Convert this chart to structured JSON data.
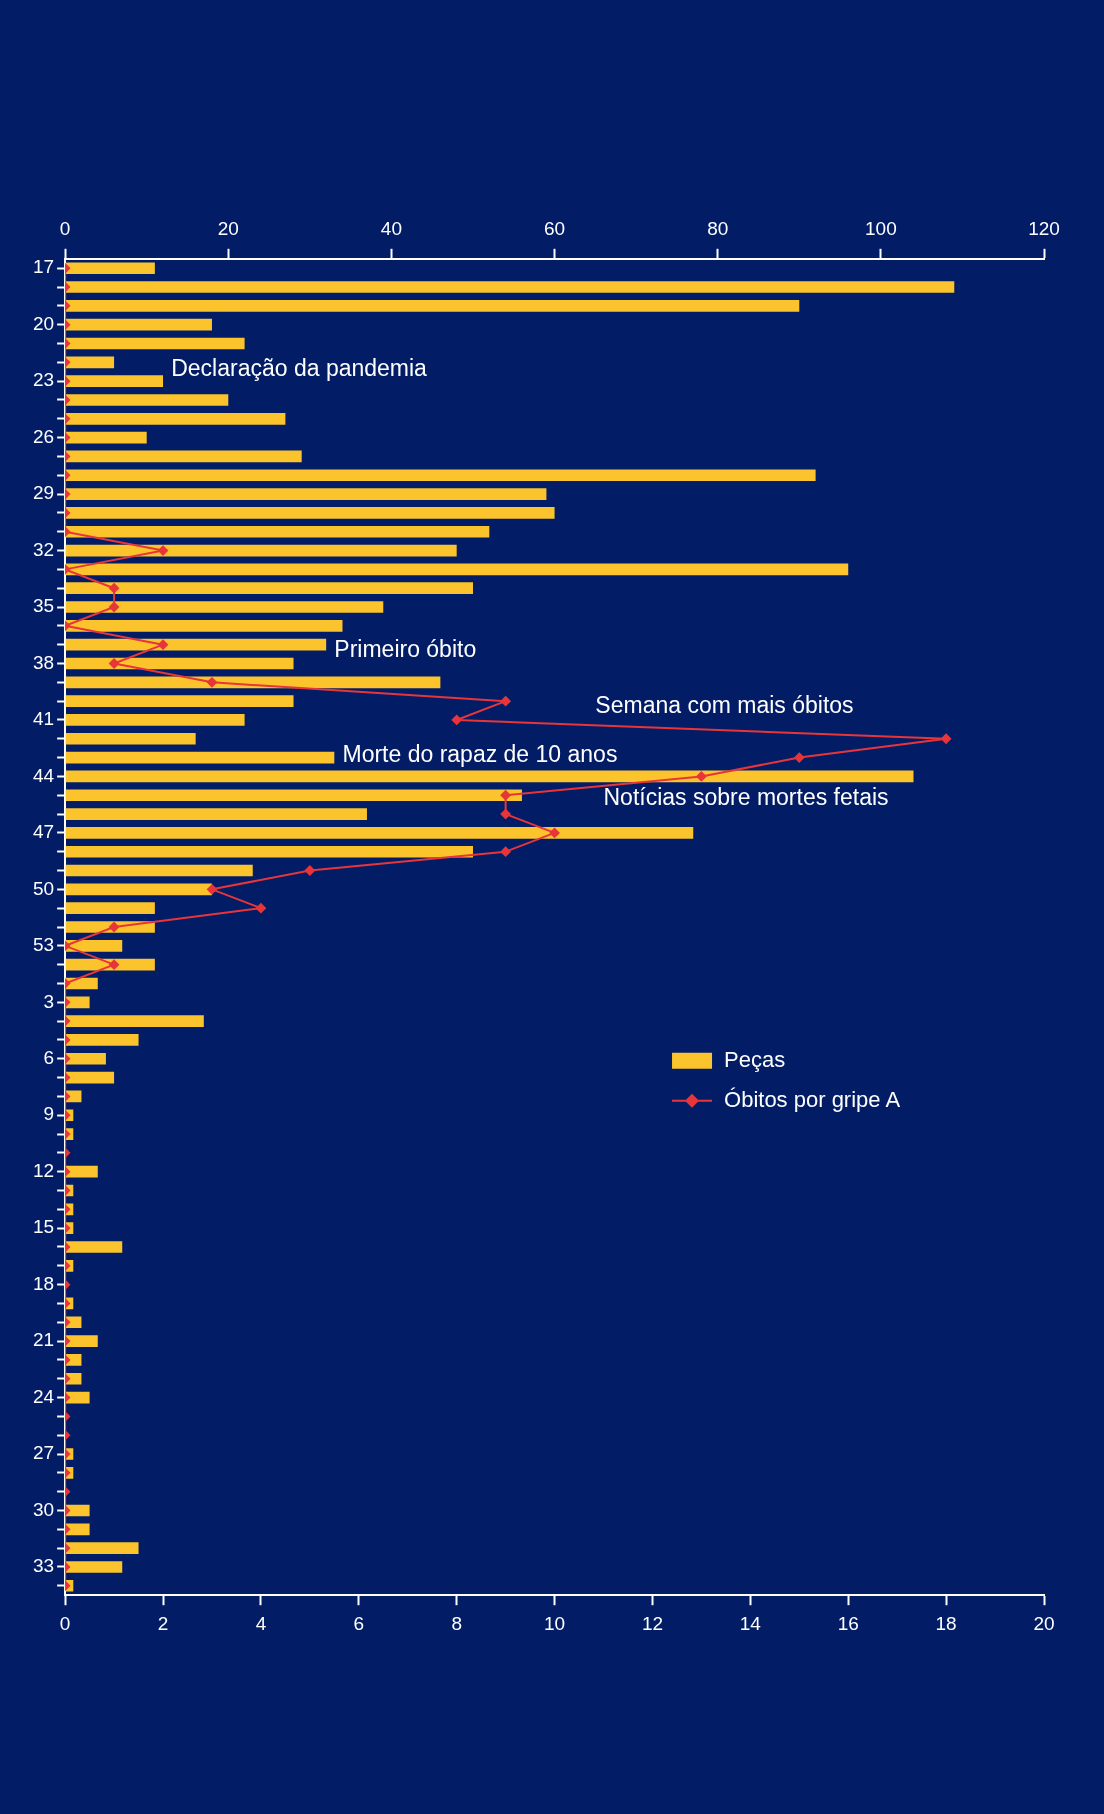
{
  "chart_data": {
    "type": "bar",
    "orientation": "horizontal",
    "categories": [
      "17",
      null,
      null,
      "20",
      null,
      null,
      "23",
      null,
      null,
      "26",
      null,
      null,
      "29",
      null,
      null,
      "32",
      null,
      null,
      "35",
      null,
      null,
      "38",
      null,
      null,
      "41",
      null,
      null,
      "44",
      null,
      null,
      "47",
      null,
      null,
      "50",
      null,
      null,
      "53",
      null,
      null,
      "3",
      null,
      null,
      "6",
      null,
      null,
      "9",
      null,
      null,
      "12",
      null,
      null,
      "15",
      null,
      null,
      "18",
      null,
      null,
      "21",
      null,
      null,
      "24",
      null,
      null,
      "27",
      null,
      null,
      "30",
      null,
      null,
      "33",
      null
    ],
    "series": [
      {
        "name": "Peças",
        "axis": "x2",
        "color": "#fbc42c",
        "values": [
          11,
          109,
          90,
          18,
          22,
          6,
          12,
          20,
          27,
          10,
          29,
          92,
          59,
          60,
          52,
          48,
          96,
          50,
          39,
          34,
          32,
          28,
          46,
          28,
          22,
          16,
          33,
          104,
          56,
          37,
          77,
          50,
          23,
          18,
          11,
          11,
          7,
          11,
          4,
          3,
          17,
          9,
          5,
          6,
          2,
          1,
          1,
          0,
          4,
          1,
          1,
          1,
          7,
          1,
          0,
          1,
          2,
          4,
          2,
          2,
          3,
          0,
          0,
          1,
          1,
          0,
          3,
          3,
          9,
          7,
          1
        ]
      },
      {
        "name": "Óbitos por gripe A",
        "type": "line",
        "marker": "diamond",
        "color": "#e8353a",
        "values": [
          0,
          0,
          0,
          0,
          0,
          0,
          0,
          0,
          0,
          0,
          0,
          0,
          0,
          0,
          0,
          2,
          0,
          1,
          1,
          0,
          2,
          1,
          3,
          9,
          8,
          18,
          15,
          13,
          9,
          9,
          10,
          9,
          5,
          3,
          4,
          1,
          0,
          1,
          0,
          0,
          0,
          0,
          0,
          0,
          0,
          0,
          0,
          0,
          0,
          0,
          0,
          0,
          0,
          0,
          0,
          0,
          0,
          0,
          0,
          0,
          0,
          0,
          0,
          0,
          0,
          0,
          0,
          0,
          0,
          0,
          0
        ]
      }
    ],
    "xlim": [
      0,
      20
    ],
    "xticks": [
      0,
      2,
      4,
      6,
      8,
      10,
      12,
      14,
      16,
      18,
      20
    ],
    "x2lim": [
      0,
      120
    ],
    "x2ticks": [
      0,
      20,
      40,
      60,
      80,
      100,
      120
    ],
    "legend": "right",
    "annotations": [
      "Declaração da pandemia",
      "Primeiro óbito",
      "Semana com mais óbitos",
      "Morte do rapaz de 10 anos",
      "Notícias sobre mortes fetais"
    ]
  }
}
